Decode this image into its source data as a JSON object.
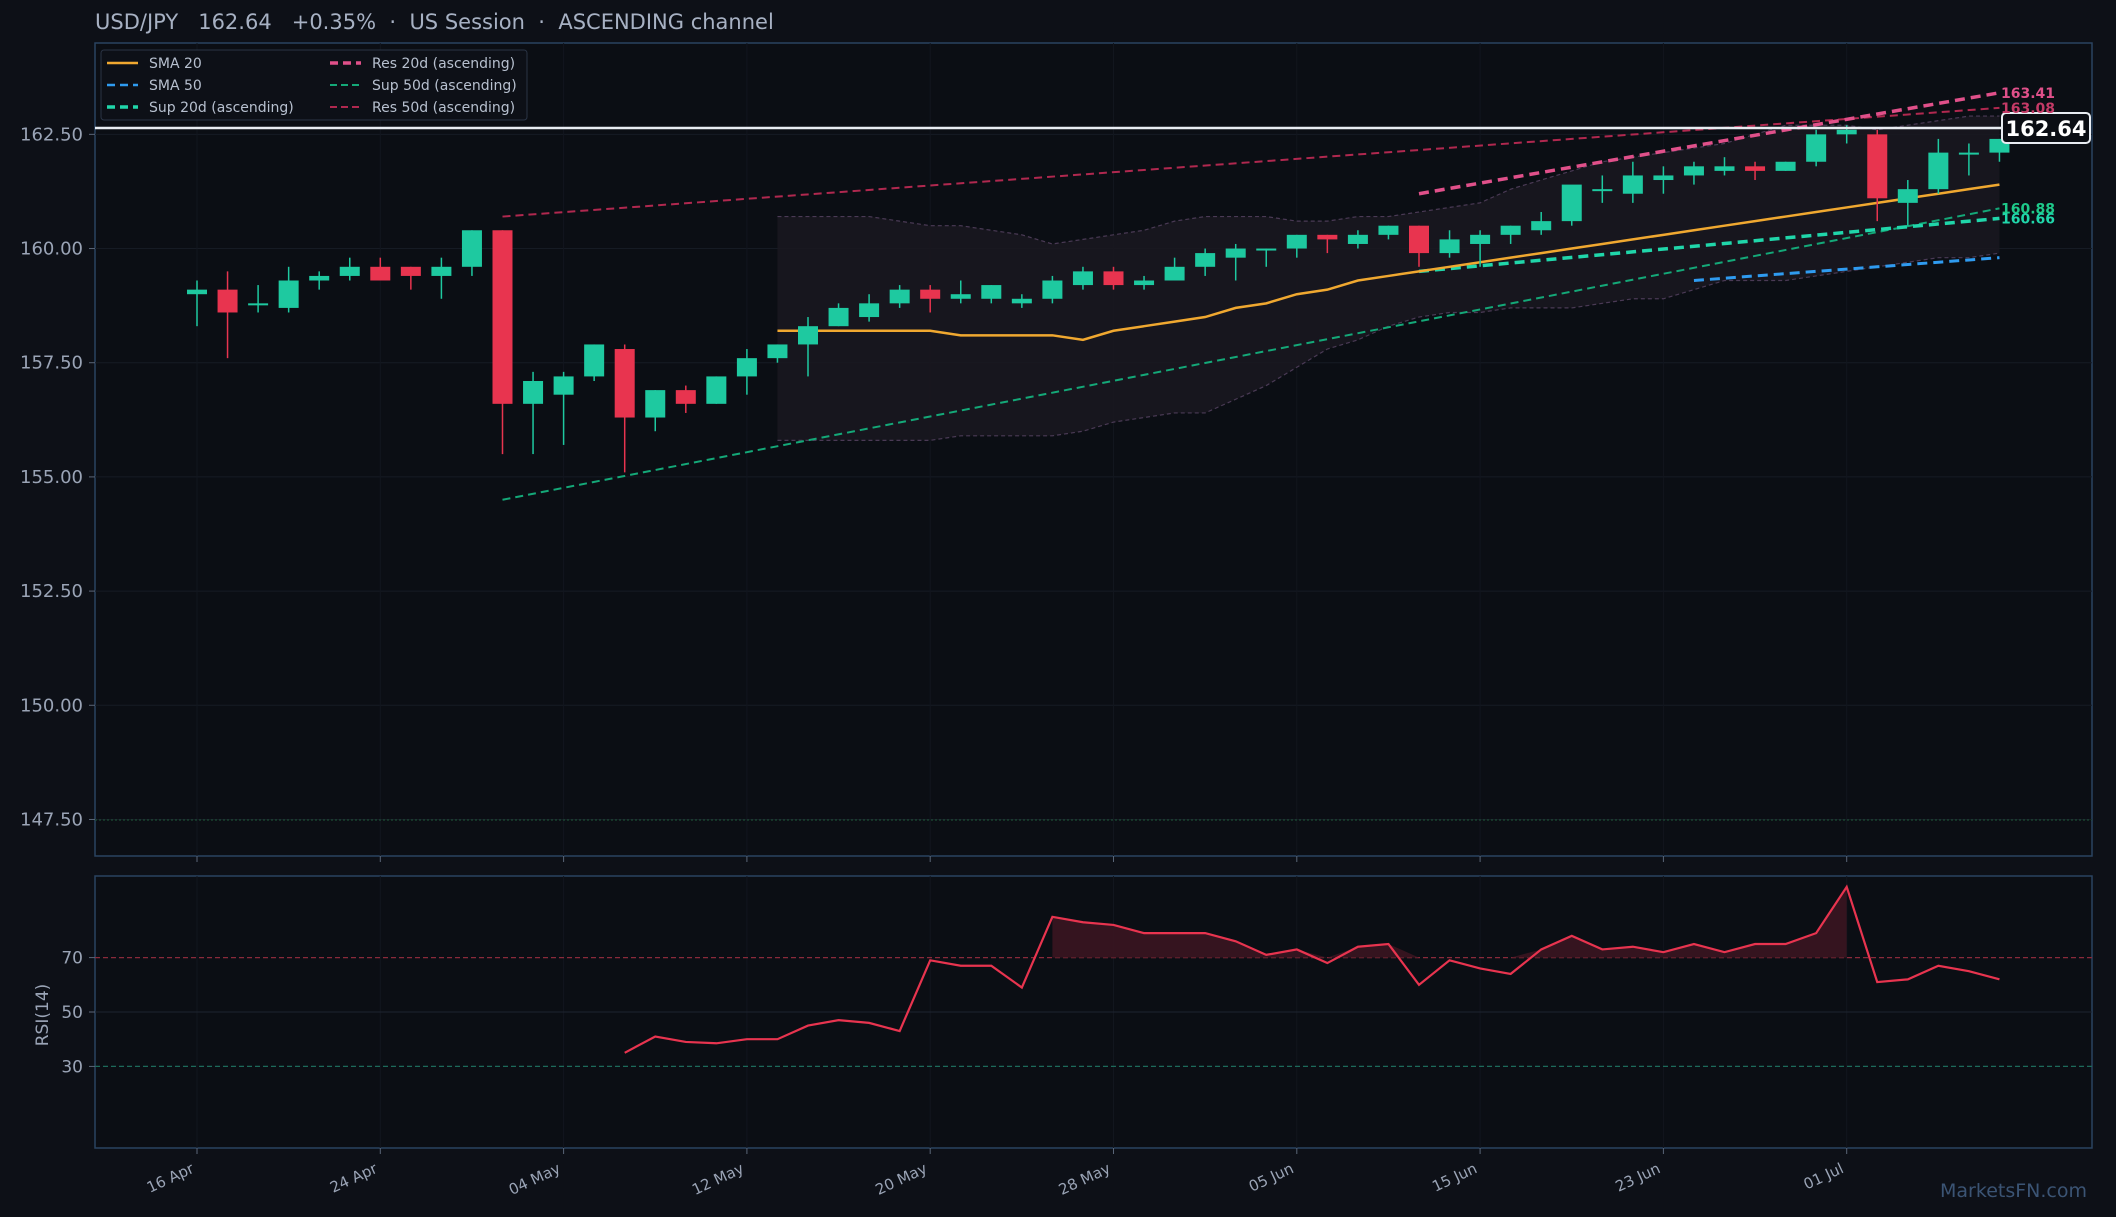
{
  "header": {
    "symbol": "USD/JPY",
    "price": "162.64",
    "change": "+0.35%",
    "session": "US Session",
    "channel": "ASCENDING channel",
    "sep": "·"
  },
  "price_tag": "162.64",
  "watermark": "MarketsFN.com",
  "rsi_label": "RSI(14)",
  "colors": {
    "up": "#1ec9a0",
    "down": "#e8344f",
    "sma20": "#f0a830",
    "sma50": "#2f9bf0",
    "sup20": "#20d6aa",
    "res20": "#e0508a",
    "sup50": "#14a878",
    "res50": "#b0284f",
    "rsi": "#e8344f",
    "background": "#0d1017",
    "frame": "#2a4360"
  },
  "chart_data": [
    {
      "type": "candlestick",
      "title": "",
      "ylim": [
        146.7,
        164.5
      ],
      "yticks": [
        "147.50",
        "150.00",
        "152.50",
        "155.00",
        "157.50",
        "160.00",
        "162.50"
      ],
      "xticks": [
        "16 Apr",
        "24 Apr",
        "04 May",
        "12 May",
        "20 May",
        "28 May",
        "05 Jun",
        "15 Jun",
        "23 Jun",
        "01 Jul"
      ],
      "legend": [
        "SMA 20",
        "SMA 50",
        "Sup 20d (ascending)",
        "Res 20d (ascending)",
        "Sup 50d (ascending)",
        "Res 50d (ascending)"
      ],
      "candles": [
        {
          "o": 159.0,
          "h": 159.3,
          "l": 158.3,
          "c": 159.1
        },
        {
          "o": 159.1,
          "h": 159.5,
          "l": 157.6,
          "c": 158.6
        },
        {
          "o": 158.8,
          "h": 159.2,
          "l": 158.6,
          "c": 158.8
        },
        {
          "o": 158.7,
          "h": 159.6,
          "l": 158.6,
          "c": 159.3
        },
        {
          "o": 159.3,
          "h": 159.5,
          "l": 159.1,
          "c": 159.4
        },
        {
          "o": 159.4,
          "h": 159.8,
          "l": 159.3,
          "c": 159.6
        },
        {
          "o": 159.6,
          "h": 159.8,
          "l": 159.3,
          "c": 159.3
        },
        {
          "o": 159.6,
          "h": 159.6,
          "l": 159.1,
          "c": 159.4
        },
        {
          "o": 159.4,
          "h": 159.8,
          "l": 158.9,
          "c": 159.6
        },
        {
          "o": 159.6,
          "h": 160.4,
          "l": 159.4,
          "c": 160.4
        },
        {
          "o": 160.4,
          "h": 160.4,
          "l": 155.5,
          "c": 156.6
        },
        {
          "o": 156.6,
          "h": 157.3,
          "l": 155.5,
          "c": 157.1
        },
        {
          "o": 156.8,
          "h": 157.3,
          "l": 155.7,
          "c": 157.2
        },
        {
          "o": 157.2,
          "h": 157.9,
          "l": 157.1,
          "c": 157.9
        },
        {
          "o": 157.8,
          "h": 157.9,
          "l": 155.1,
          "c": 156.3
        },
        {
          "o": 156.3,
          "h": 156.9,
          "l": 156.0,
          "c": 156.9
        },
        {
          "o": 156.9,
          "h": 157.0,
          "l": 156.4,
          "c": 156.6
        },
        {
          "o": 156.6,
          "h": 157.2,
          "l": 156.6,
          "c": 157.2
        },
        {
          "o": 157.2,
          "h": 157.8,
          "l": 156.8,
          "c": 157.6
        },
        {
          "o": 157.6,
          "h": 157.9,
          "l": 157.5,
          "c": 157.9
        },
        {
          "o": 157.9,
          "h": 158.5,
          "l": 157.2,
          "c": 158.3
        },
        {
          "o": 158.3,
          "h": 158.8,
          "l": 158.3,
          "c": 158.7
        },
        {
          "o": 158.5,
          "h": 159.0,
          "l": 158.4,
          "c": 158.8
        },
        {
          "o": 158.8,
          "h": 159.2,
          "l": 158.7,
          "c": 159.1
        },
        {
          "o": 159.1,
          "h": 159.2,
          "l": 158.6,
          "c": 158.9
        },
        {
          "o": 158.9,
          "h": 159.3,
          "l": 158.8,
          "c": 159.0
        },
        {
          "o": 158.9,
          "h": 159.2,
          "l": 158.8,
          "c": 159.2
        },
        {
          "o": 158.8,
          "h": 159.0,
          "l": 158.7,
          "c": 158.9
        },
        {
          "o": 158.9,
          "h": 159.4,
          "l": 158.8,
          "c": 159.3
        },
        {
          "o": 159.2,
          "h": 159.6,
          "l": 159.1,
          "c": 159.5
        },
        {
          "o": 159.5,
          "h": 159.6,
          "l": 159.1,
          "c": 159.2
        },
        {
          "o": 159.2,
          "h": 159.4,
          "l": 159.1,
          "c": 159.3
        },
        {
          "o": 159.3,
          "h": 159.8,
          "l": 159.3,
          "c": 159.6
        },
        {
          "o": 159.6,
          "h": 160.0,
          "l": 159.4,
          "c": 159.9
        },
        {
          "o": 159.8,
          "h": 160.1,
          "l": 159.3,
          "c": 160.0
        },
        {
          "o": 160.0,
          "h": 160.0,
          "l": 159.6,
          "c": 160.0
        },
        {
          "o": 160.0,
          "h": 160.3,
          "l": 159.8,
          "c": 160.3
        },
        {
          "o": 160.3,
          "h": 160.3,
          "l": 159.9,
          "c": 160.2
        },
        {
          "o": 160.1,
          "h": 160.4,
          "l": 160.0,
          "c": 160.3
        },
        {
          "o": 160.3,
          "h": 160.5,
          "l": 160.2,
          "c": 160.5
        },
        {
          "o": 160.5,
          "h": 160.5,
          "l": 159.6,
          "c": 159.9
        },
        {
          "o": 159.9,
          "h": 160.4,
          "l": 159.8,
          "c": 160.2
        },
        {
          "o": 160.1,
          "h": 160.4,
          "l": 159.6,
          "c": 160.3
        },
        {
          "o": 160.3,
          "h": 160.5,
          "l": 160.1,
          "c": 160.5
        },
        {
          "o": 160.4,
          "h": 160.8,
          "l": 160.3,
          "c": 160.6
        },
        {
          "o": 160.6,
          "h": 161.3,
          "l": 160.5,
          "c": 161.4
        },
        {
          "o": 161.3,
          "h": 161.6,
          "l": 161.0,
          "c": 161.3
        },
        {
          "o": 161.2,
          "h": 161.9,
          "l": 161.0,
          "c": 161.6
        },
        {
          "o": 161.5,
          "h": 161.8,
          "l": 161.2,
          "c": 161.6
        },
        {
          "o": 161.6,
          "h": 161.9,
          "l": 161.4,
          "c": 161.8
        },
        {
          "o": 161.7,
          "h": 162.0,
          "l": 161.6,
          "c": 161.8
        },
        {
          "o": 161.8,
          "h": 161.9,
          "l": 161.5,
          "c": 161.7
        },
        {
          "o": 161.7,
          "h": 161.9,
          "l": 161.7,
          "c": 161.9
        },
        {
          "o": 161.9,
          "h": 162.6,
          "l": 161.8,
          "c": 162.5
        },
        {
          "o": 162.5,
          "h": 162.7,
          "l": 162.3,
          "c": 162.6
        },
        {
          "o": 162.5,
          "h": 162.6,
          "l": 160.6,
          "c": 161.1
        },
        {
          "o": 161.0,
          "h": 161.5,
          "l": 160.5,
          "c": 161.3
        },
        {
          "o": 161.3,
          "h": 162.4,
          "l": 161.2,
          "c": 162.1
        },
        {
          "o": 162.1,
          "h": 162.3,
          "l": 161.6,
          "c": 162.1
        },
        {
          "o": 162.1,
          "h": 162.4,
          "l": 161.9,
          "c": 162.4
        }
      ],
      "sma20": {
        "start_index": 19,
        "values": [
          158.2,
          158.2,
          158.2,
          158.2,
          158.2,
          158.2,
          158.1,
          158.1,
          158.1,
          158.1,
          158.0,
          158.2,
          158.3,
          158.4,
          158.5,
          158.7,
          158.8,
          159.0,
          159.1,
          159.3,
          159.4,
          159.5,
          159.6,
          159.7,
          159.8,
          159.9,
          160.0,
          160.1,
          160.2,
          160.3,
          160.4,
          160.5,
          160.6,
          160.7,
          160.8,
          160.9,
          161.0,
          161.1,
          161.2,
          161.3,
          161.4
        ]
      },
      "sma50": {
        "start_index": 49,
        "values": [
          159.3,
          159.35,
          159.4,
          159.45,
          159.5,
          159.55,
          159.6,
          159.65,
          159.7,
          159.75,
          159.8
        ]
      },
      "sup20": {
        "start_index": 40,
        "end_index": 59,
        "from": 159.5,
        "to": 160.66
      },
      "res20": {
        "start_index": 40,
        "end_index": 59,
        "from": 161.2,
        "to": 163.41
      },
      "sup50": {
        "start_index": 10,
        "end_index": 59,
        "from": 154.5,
        "to": 160.88
      },
      "res50": {
        "start_index": 10,
        "end_index": 59,
        "from": 160.7,
        "to": 163.08
      },
      "end_labels": {
        "res20": "163.41",
        "res50": "163.08",
        "sup50": "160.88",
        "sup20": "160.66"
      },
      "current_price": 162.64,
      "bollinger": {
        "start_index": 19,
        "upper": [
          160.7,
          160.7,
          160.7,
          160.7,
          160.6,
          160.5,
          160.5,
          160.4,
          160.3,
          160.1,
          160.2,
          160.3,
          160.4,
          160.6,
          160.7,
          160.7,
          160.7,
          160.6,
          160.6,
          160.7,
          160.7,
          160.8,
          160.9,
          161.0,
          161.3,
          161.5,
          161.7,
          161.9,
          162.0,
          162.1,
          162.2,
          162.3,
          162.5,
          162.7,
          162.7,
          162.7,
          162.6,
          162.7,
          162.8,
          162.9,
          162.9
        ],
        "lower": [
          155.8,
          155.8,
          155.8,
          155.8,
          155.8,
          155.8,
          155.9,
          155.9,
          155.9,
          155.9,
          156.0,
          156.2,
          156.3,
          156.4,
          156.4,
          156.7,
          157.0,
          157.4,
          157.8,
          158.0,
          158.3,
          158.5,
          158.6,
          158.6,
          158.7,
          158.7,
          158.7,
          158.8,
          158.9,
          158.9,
          159.1,
          159.3,
          159.3,
          159.3,
          159.4,
          159.5,
          159.6,
          159.7,
          159.8,
          159.8,
          159.9
        ]
      }
    },
    {
      "type": "line",
      "series": [
        {
          "name": "RSI(14)",
          "start_index": 14,
          "values": [
            35,
            41,
            39,
            38.5,
            40,
            40,
            45,
            47,
            46,
            43,
            69,
            67,
            67,
            59,
            85,
            83,
            82,
            79,
            79,
            79,
            76,
            71,
            73,
            68,
            74,
            75,
            60,
            69,
            66,
            64,
            73,
            78,
            73,
            74,
            72,
            75,
            72,
            75,
            75,
            79,
            96,
            61,
            62,
            67,
            65,
            62
          ]
        }
      ],
      "ylim": [
        0,
        100
      ],
      "yticks": [
        "30",
        "50",
        "70"
      ],
      "overbought": 70,
      "oversold": 30,
      "ylabel": "RSI(14)"
    }
  ]
}
